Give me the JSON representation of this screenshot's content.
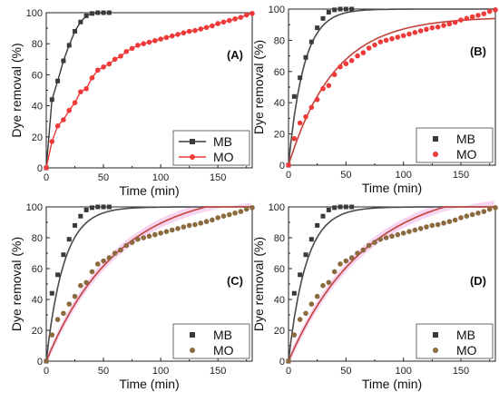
{
  "colors": {
    "mb": "#3a3a3a",
    "mo_red": "#f03a3a",
    "mo_brown": "#8b6a3e",
    "fit_mb": "#4a4a4a",
    "fit_mo": "#c0433a",
    "band": "#f3c3ec"
  },
  "chart_data": [
    {
      "panel": "(A)",
      "type": "line",
      "xlabel": "Time (min)",
      "ylabel": "Dye removal (%)",
      "xlim": [
        0,
        180
      ],
      "ylim": [
        0,
        100
      ],
      "xticks": [
        0,
        50,
        100,
        150
      ],
      "yticks": [
        0,
        20,
        40,
        60,
        80,
        100
      ],
      "legend_position": "bottom-right",
      "series": [
        {
          "name": "MB",
          "style": "line-square",
          "color": "#3a3a3a",
          "x": [
            0,
            5,
            10,
            15,
            20,
            25,
            30,
            35,
            40,
            45,
            50,
            55
          ],
          "y": [
            0,
            44,
            56,
            69,
            79,
            88,
            94,
            98,
            99.5,
            100,
            100,
            100
          ]
        },
        {
          "name": "MO",
          "style": "line-circle",
          "color": "#f03a3a",
          "x": [
            0,
            5,
            10,
            15,
            20,
            25,
            30,
            35,
            40,
            45,
            50,
            55,
            60,
            65,
            70,
            75,
            80,
            85,
            90,
            95,
            100,
            105,
            110,
            115,
            120,
            125,
            130,
            135,
            140,
            145,
            150,
            155,
            160,
            165,
            170,
            175,
            180
          ],
          "y": [
            0,
            17,
            27,
            31,
            37,
            42,
            49,
            51,
            58,
            63,
            65,
            67,
            70,
            72,
            75,
            77,
            79,
            80,
            81,
            82,
            83,
            84,
            85,
            86,
            87,
            88,
            88.5,
            89.5,
            90.5,
            91.5,
            93,
            94,
            95,
            96,
            97,
            98.5,
            99.5
          ]
        }
      ]
    },
    {
      "panel": "(B)",
      "type": "scatter",
      "xlabel": "Time (min)",
      "ylabel": "Dye removal (%)",
      "xlim": [
        0,
        180
      ],
      "ylim": [
        0,
        100
      ],
      "xticks": [
        0,
        50,
        100,
        150
      ],
      "yticks": [
        0,
        20,
        40,
        60,
        80,
        100
      ],
      "legend_position": "bottom-right",
      "series": [
        {
          "name": "MB",
          "style": "square",
          "color": "#3a3a3a",
          "x": [
            0,
            5,
            10,
            15,
            20,
            25,
            30,
            35,
            40,
            45,
            50,
            55
          ],
          "y": [
            0,
            44,
            56,
            69,
            79,
            88,
            94,
            98,
            99.5,
            100,
            100,
            100
          ],
          "fit_k": 0.075
        },
        {
          "name": "MO",
          "style": "circle",
          "color": "#f03a3a",
          "x": [
            0,
            5,
            10,
            15,
            20,
            25,
            30,
            35,
            40,
            45,
            50,
            55,
            60,
            65,
            70,
            75,
            80,
            85,
            90,
            95,
            100,
            105,
            110,
            115,
            120,
            125,
            130,
            135,
            140,
            145,
            150,
            155,
            160,
            165,
            170,
            175,
            180
          ],
          "y": [
            0,
            17,
            27,
            31,
            37,
            42,
            49,
            51,
            58,
            63,
            65,
            67,
            70,
            72,
            75,
            77,
            79,
            80,
            81,
            82,
            83,
            84,
            85,
            86,
            87,
            88,
            88.5,
            89.5,
            90.5,
            91.5,
            93,
            94,
            95,
            96,
            97,
            98.5,
            99.5
          ],
          "fit_qmax": 95,
          "fit_k": 0.025
        }
      ]
    },
    {
      "panel": "(C)",
      "type": "scatter",
      "xlabel": "Time (min)",
      "ylabel": "Dye removal (%)",
      "xlim": [
        0,
        180
      ],
      "ylim": [
        0,
        100
      ],
      "xticks": [
        0,
        50,
        100,
        150
      ],
      "yticks": [
        0,
        20,
        40,
        60,
        80,
        100
      ],
      "legend_position": "bottom-right",
      "series": [
        {
          "name": "MB",
          "style": "square",
          "color": "#3a3a3a",
          "x": [
            0,
            5,
            10,
            15,
            20,
            25,
            30,
            35,
            40,
            45,
            50,
            55
          ],
          "y": [
            0,
            44,
            56,
            69,
            79,
            88,
            94,
            98,
            99.5,
            100,
            100,
            100
          ],
          "fit_k": 0.065
        },
        {
          "name": "MO",
          "style": "circle",
          "color": "#8b6a3e",
          "x": [
            0,
            5,
            10,
            15,
            20,
            25,
            30,
            35,
            40,
            45,
            50,
            55,
            60,
            65,
            70,
            75,
            80,
            85,
            90,
            95,
            100,
            105,
            110,
            115,
            120,
            125,
            130,
            135,
            140,
            145,
            150,
            155,
            160,
            165,
            170,
            175,
            180
          ],
          "y": [
            0,
            17,
            27,
            31,
            37,
            42,
            49,
            51,
            58,
            63,
            65,
            67,
            70,
            72,
            75,
            77,
            79,
            80,
            81,
            82,
            83,
            84,
            85,
            86,
            87,
            88,
            88.5,
            89.5,
            90.5,
            91.5,
            93,
            94,
            95,
            96,
            97,
            98.5,
            99.5
          ],
          "fit_qmax": 112,
          "fit_k": 0.016
        }
      ]
    },
    {
      "panel": "(D)",
      "type": "scatter",
      "xlabel": "Time (min)",
      "ylabel": "Dye removal (%)",
      "xlim": [
        0,
        180
      ],
      "ylim": [
        0,
        100
      ],
      "xticks": [
        0,
        50,
        100,
        150
      ],
      "yticks": [
        0,
        20,
        40,
        60,
        80,
        100
      ],
      "legend_position": "bottom-right",
      "series": [
        {
          "name": "MB",
          "style": "square",
          "color": "#3a3a3a",
          "x": [
            0,
            5,
            10,
            15,
            20,
            25,
            30,
            35,
            40,
            45,
            50,
            55
          ],
          "y": [
            0,
            44,
            56,
            69,
            79,
            88,
            94,
            98,
            99.5,
            100,
            100,
            100
          ],
          "fit_k": 0.065
        },
        {
          "name": "MO",
          "style": "circle",
          "color": "#8b6a3e",
          "x": [
            0,
            5,
            10,
            15,
            20,
            25,
            30,
            35,
            40,
            45,
            50,
            55,
            60,
            65,
            70,
            75,
            80,
            85,
            90,
            95,
            100,
            105,
            110,
            115,
            120,
            125,
            130,
            135,
            140,
            145,
            150,
            155,
            160,
            165,
            170,
            175,
            180
          ],
          "y": [
            0,
            17,
            27,
            31,
            37,
            42,
            49,
            51,
            58,
            63,
            65,
            67,
            70,
            72,
            75,
            77,
            79,
            80,
            81,
            82,
            83,
            84,
            85,
            86,
            87,
            88,
            88.5,
            89.5,
            90.5,
            91.5,
            93,
            94,
            95,
            96,
            97,
            98.5,
            99.5
          ],
          "fit_qmax": 115,
          "fit_k": 0.015
        }
      ]
    }
  ]
}
